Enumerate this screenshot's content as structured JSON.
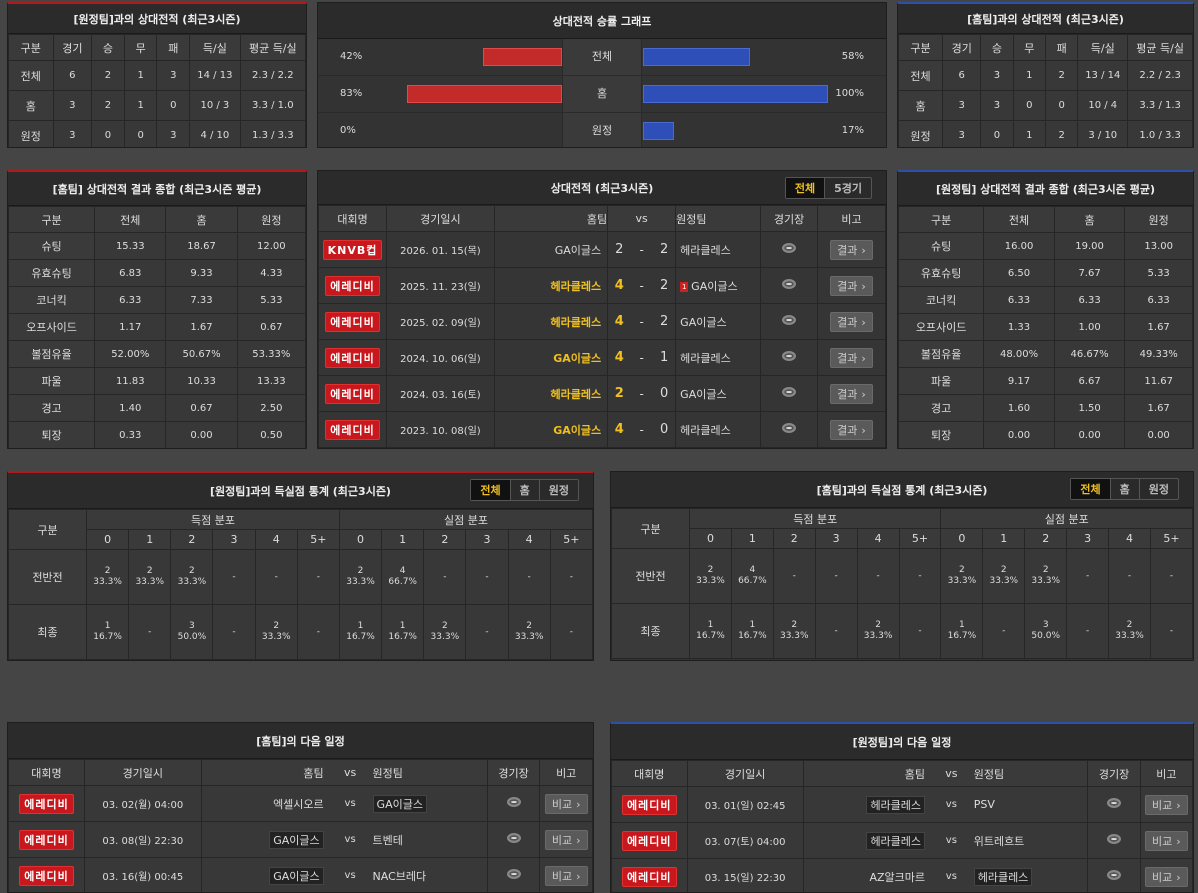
{
  "away_h2h": {
    "title": "[원정팀]과의 상대전적 (최근3시즌)",
    "headers": [
      "구분",
      "경기",
      "승",
      "무",
      "패",
      "득/실",
      "평균 득/실"
    ],
    "rows": [
      [
        "전체",
        "6",
        "2",
        "1",
        "3",
        "14 / 13",
        "2.3 / 2.2"
      ],
      [
        "홈",
        "3",
        "2",
        "1",
        "0",
        "10 / 3",
        "3.3 / 1.0"
      ],
      [
        "원정",
        "3",
        "0",
        "0",
        "3",
        "4 / 10",
        "1.3 / 3.3"
      ]
    ]
  },
  "graph": {
    "title": "상대전적 승률 그래프",
    "rows": [
      {
        "label": "전체",
        "left": "42%",
        "right": "58%",
        "left_val": 42,
        "right_val": 58
      },
      {
        "label": "홈",
        "left": "83%",
        "right": "100%",
        "left_val": 83,
        "right_val": 100
      },
      {
        "label": "원정",
        "left": "0%",
        "right": "17%",
        "left_val": 0,
        "right_val": 17
      }
    ]
  },
  "home_h2h": {
    "title": "[홈팀]과의 상대전적 (최근3시즌)",
    "headers": [
      "구분",
      "경기",
      "승",
      "무",
      "패",
      "득/실",
      "평균 득/실"
    ],
    "rows": [
      [
        "전체",
        "6",
        "3",
        "1",
        "2",
        "13 / 14",
        "2.2 / 2.3"
      ],
      [
        "홈",
        "3",
        "3",
        "0",
        "0",
        "10 / 4",
        "3.3 / 1.3"
      ],
      [
        "원정",
        "3",
        "0",
        "1",
        "2",
        "3 / 10",
        "1.0 / 3.3"
      ]
    ]
  },
  "home_summary": {
    "title": "[홈팀] 상대전적 결과 종합 (최근3시즌 평균)",
    "headers": [
      "구분",
      "전체",
      "홈",
      "원정"
    ],
    "rows": [
      [
        "슈팅",
        "15.33",
        "18.67",
        "12.00"
      ],
      [
        "유효슈팅",
        "6.83",
        "9.33",
        "4.33"
      ],
      [
        "코너킥",
        "6.33",
        "7.33",
        "5.33"
      ],
      [
        "오프사이드",
        "1.17",
        "1.67",
        "0.67"
      ],
      [
        "볼점유율",
        "52.00%",
        "50.67%",
        "53.33%"
      ],
      [
        "파울",
        "11.83",
        "10.33",
        "13.33"
      ],
      [
        "경고",
        "1.40",
        "0.67",
        "2.50"
      ],
      [
        "퇴장",
        "0.33",
        "0.00",
        "0.50"
      ]
    ]
  },
  "away_summary": {
    "title": "[원정팀] 상대전적 결과 종합 (최근3시즌 평균)",
    "headers": [
      "구분",
      "전체",
      "홈",
      "원정"
    ],
    "rows": [
      [
        "슈팅",
        "16.00",
        "19.00",
        "13.00"
      ],
      [
        "유효슈팅",
        "6.50",
        "7.67",
        "5.33"
      ],
      [
        "코너킥",
        "6.33",
        "6.33",
        "6.33"
      ],
      [
        "오프사이드",
        "1.33",
        "1.00",
        "1.67"
      ],
      [
        "볼점유율",
        "48.00%",
        "46.67%",
        "49.33%"
      ],
      [
        "파울",
        "9.17",
        "6.67",
        "11.67"
      ],
      [
        "경고",
        "1.60",
        "1.50",
        "1.67"
      ],
      [
        "퇴장",
        "0.00",
        "0.00",
        "0.00"
      ]
    ]
  },
  "matches": {
    "title": "상대전적 (최근3시즌)",
    "tab_all": "전체",
    "tab_5": "5경기",
    "headers": {
      "comp": "대회명",
      "date": "경기일시",
      "teams": "홈팀",
      "vs": "vs",
      "away": "원정팀",
      "venue": "경기장",
      "note": "비고"
    },
    "rows": [
      {
        "comp": "KNVB컵",
        "date": "2026. 01. 15(목)",
        "home": "GA이글스",
        "hs": "2",
        "as": "2",
        "away": "헤라클레스",
        "hl": "none",
        "card": ""
      },
      {
        "comp": "에레디비",
        "date": "2025. 11. 23(일)",
        "home": "헤라클레스",
        "hs": "4",
        "as": "2",
        "away": "GA이글스",
        "hl": "home",
        "card": "1"
      },
      {
        "comp": "에레디비",
        "date": "2025. 02. 09(일)",
        "home": "헤라클레스",
        "hs": "4",
        "as": "2",
        "away": "GA이글스",
        "hl": "home",
        "card": ""
      },
      {
        "comp": "에레디비",
        "date": "2024. 10. 06(일)",
        "home": "GA이글스",
        "hs": "4",
        "as": "1",
        "away": "헤라클레스",
        "hl": "home",
        "card": ""
      },
      {
        "comp": "에레디비",
        "date": "2024. 03. 16(토)",
        "home": "헤라클레스",
        "hs": "2",
        "as": "0",
        "away": "GA이글스",
        "hl": "home",
        "card": ""
      },
      {
        "comp": "에레디비",
        "date": "2023. 10. 08(일)",
        "home": "GA이글스",
        "hs": "4",
        "as": "0",
        "away": "헤라클레스",
        "hl": "home",
        "card": ""
      }
    ],
    "result_label": "결과"
  },
  "goals_away": {
    "title": "[원정팀]과의 득실점 통계 (최근3시즌)",
    "tabs": [
      "전체",
      "홈",
      "원정"
    ],
    "h_label": "구분",
    "scored": "득점 분포",
    "conceded": "실점 분포",
    "cols": [
      "0",
      "1",
      "2",
      "3",
      "4",
      "5+",
      "0",
      "1",
      "2",
      "3",
      "4",
      "5+"
    ],
    "rows": [
      {
        "label": "전반전",
        "cells": [
          [
            "2",
            "33.3%"
          ],
          [
            "2",
            "33.3%"
          ],
          [
            "2",
            "33.3%"
          ],
          [
            "-",
            ""
          ],
          [
            "-",
            ""
          ],
          [
            "-",
            ""
          ],
          [
            "2",
            "33.3%"
          ],
          [
            "4",
            "66.7%"
          ],
          [
            "-",
            ""
          ],
          [
            "-",
            ""
          ],
          [
            "-",
            ""
          ],
          [
            "-",
            ""
          ]
        ]
      },
      {
        "label": "최종",
        "cells": [
          [
            "1",
            "16.7%"
          ],
          [
            "-",
            ""
          ],
          [
            "3",
            "50.0%"
          ],
          [
            "-",
            ""
          ],
          [
            "2",
            "33.3%"
          ],
          [
            "-",
            ""
          ],
          [
            "1",
            "16.7%"
          ],
          [
            "1",
            "16.7%"
          ],
          [
            "2",
            "33.3%"
          ],
          [
            "-",
            ""
          ],
          [
            "2",
            "33.3%"
          ],
          [
            "-",
            ""
          ]
        ]
      }
    ]
  },
  "goals_home": {
    "title": "[홈팀]과의 득실점 통계 (최근3시즌)",
    "tabs": [
      "전체",
      "홈",
      "원정"
    ],
    "h_label": "구분",
    "scored": "득점 분포",
    "conceded": "실점 분포",
    "cols": [
      "0",
      "1",
      "2",
      "3",
      "4",
      "5+",
      "0",
      "1",
      "2",
      "3",
      "4",
      "5+"
    ],
    "rows": [
      {
        "label": "전반전",
        "cells": [
          [
            "2",
            "33.3%"
          ],
          [
            "4",
            "66.7%"
          ],
          [
            "-",
            ""
          ],
          [
            "-",
            ""
          ],
          [
            "-",
            ""
          ],
          [
            "-",
            ""
          ],
          [
            "2",
            "33.3%"
          ],
          [
            "2",
            "33.3%"
          ],
          [
            "2",
            "33.3%"
          ],
          [
            "-",
            ""
          ],
          [
            "-",
            ""
          ],
          [
            "-",
            ""
          ]
        ]
      },
      {
        "label": "최종",
        "cells": [
          [
            "1",
            "16.7%"
          ],
          [
            "1",
            "16.7%"
          ],
          [
            "2",
            "33.3%"
          ],
          [
            "-",
            ""
          ],
          [
            "2",
            "33.3%"
          ],
          [
            "-",
            ""
          ],
          [
            "1",
            "16.7%"
          ],
          [
            "-",
            ""
          ],
          [
            "3",
            "50.0%"
          ],
          [
            "-",
            ""
          ],
          [
            "2",
            "33.3%"
          ],
          [
            "-",
            ""
          ]
        ]
      }
    ]
  },
  "home_next": {
    "title": "[홈팀]의 다음 일정",
    "headers": {
      "comp": "대회명",
      "date": "경기일시",
      "home": "홈팀",
      "vs": "vs",
      "away": "원정팀",
      "venue": "경기장",
      "note": "비고"
    },
    "rows": [
      {
        "comp": "에레디비",
        "date": "03. 02(월) 04:00",
        "home": "엑셀시오르",
        "away": "GA이글스",
        "box": "away"
      },
      {
        "comp": "에레디비",
        "date": "03. 08(일) 22:30",
        "home": "GA이글스",
        "away": "트벤테",
        "box": "home"
      },
      {
        "comp": "에레디비",
        "date": "03. 16(월) 00:45",
        "home": "GA이글스",
        "away": "NAC브레다",
        "box": "home"
      }
    ],
    "btn": "비교"
  },
  "away_next": {
    "title": "[원정팀]의 다음 일정",
    "headers": {
      "comp": "대회명",
      "date": "경기일시",
      "home": "홈팀",
      "vs": "vs",
      "away": "원정팀",
      "venue": "경기장",
      "note": "비고"
    },
    "rows": [
      {
        "comp": "에레디비",
        "date": "03. 01(일) 02:45",
        "home": "헤라클레스",
        "away": "PSV",
        "box": "home"
      },
      {
        "comp": "에레디비",
        "date": "03. 07(토) 04:00",
        "home": "헤라클레스",
        "away": "위트레흐트",
        "box": "home"
      },
      {
        "comp": "에레디비",
        "date": "03. 15(일) 22:30",
        "home": "AZ알크마르",
        "away": "헤라클레스",
        "box": "away"
      }
    ],
    "btn": "비교"
  },
  "vs_text": "vs"
}
